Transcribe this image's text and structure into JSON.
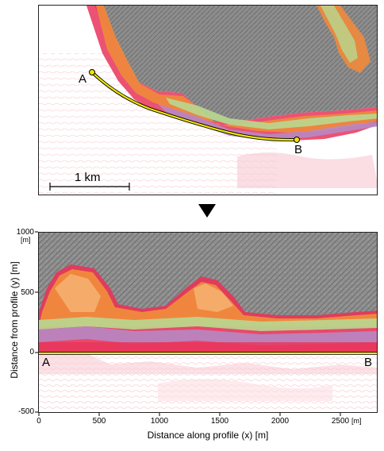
{
  "top_map": {
    "point_a": "A",
    "point_b": "B",
    "scale_bar_label": "1 km"
  },
  "arrow": {
    "icon": "down-triangle-icon"
  },
  "bottom_map": {
    "point_a": "A",
    "point_b": "B",
    "y_axis": {
      "label": "Distance from profile (y) [m]",
      "unit": "[m]",
      "ticks": [
        "1000",
        "500",
        "0",
        "-500"
      ]
    },
    "x_axis": {
      "label": "Distance along profile (x) [m]",
      "unit": "[m]",
      "ticks": [
        "0",
        "500",
        "1000",
        "1500",
        "2000",
        "2500"
      ]
    }
  },
  "colors": {
    "hillshade": "#8a8a8a",
    "red": "#e8345a",
    "orange": "#f08a3c",
    "green": "#b8d890",
    "purple": "#b48cc8",
    "profile_line": "#f0e600"
  }
}
